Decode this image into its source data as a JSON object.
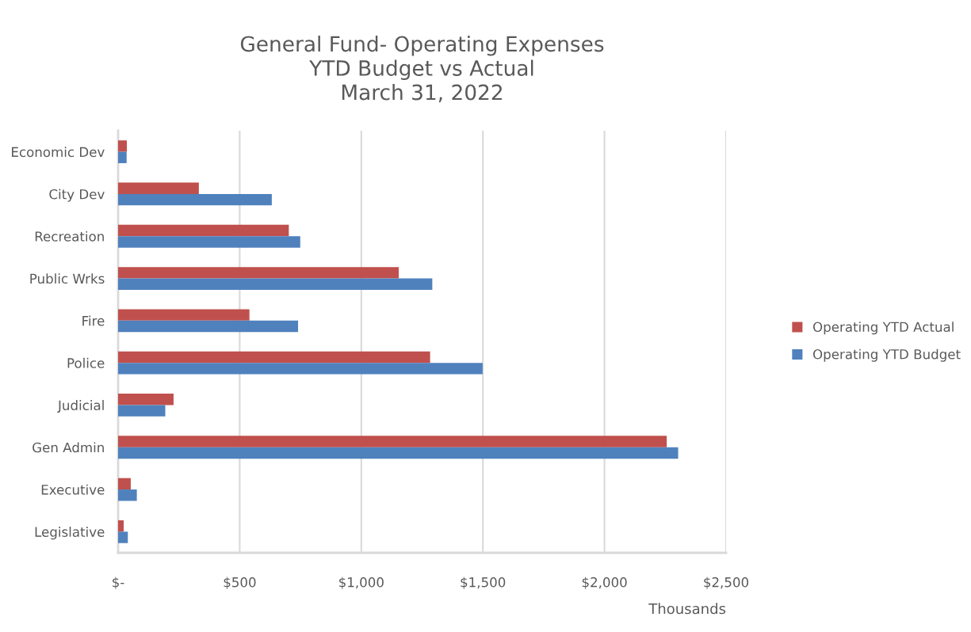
{
  "chart_data": {
    "type": "bar",
    "orientation": "horizontal",
    "title": "General Fund- Operating Expenses\nYTD Budget vs Actual\nMarch 31, 2022",
    "xlabel": "Thousands",
    "categories": [
      "Economic Dev",
      "City Dev",
      "Recreation",
      "Public Wrks",
      "Fire",
      "Police",
      "Judicial",
      "Gen Admin",
      "Executive",
      "Legislative"
    ],
    "series": [
      {
        "name": "Operating YTD Actual",
        "color": "#c0504d",
        "values": [
          36,
          332,
          702,
          1154,
          540,
          1283,
          228,
          2256,
          52,
          23
        ]
      },
      {
        "name": "Operating YTD Budget",
        "color": "#4f81bd",
        "values": [
          35,
          632,
          749,
          1292,
          740,
          1499,
          194,
          2303,
          77,
          40
        ]
      }
    ],
    "xlim": [
      0,
      2500
    ],
    "xticks": [
      {
        "value": 0,
        "label": "$-"
      },
      {
        "value": 500,
        "label": "$500"
      },
      {
        "value": 1000,
        "label": "$1,000"
      },
      {
        "value": 1500,
        "label": "$1,500"
      },
      {
        "value": 2000,
        "label": "$2,000"
      },
      {
        "value": 2500,
        "label": "$2,500"
      }
    ],
    "grid": "x",
    "legend": "right"
  }
}
